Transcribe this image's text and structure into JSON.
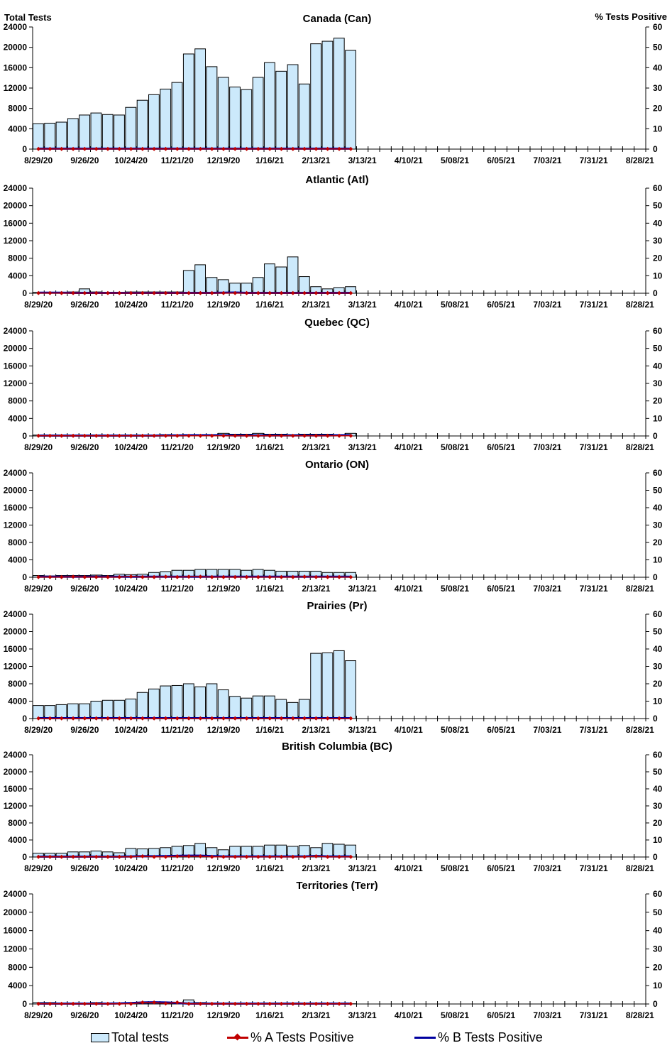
{
  "chart_data": {
    "type": "bar",
    "left_axis_label": "Total Tests",
    "right_axis_label": "% Tests Positive",
    "left_ylim": [
      0,
      24000
    ],
    "left_ticks": [
      "0",
      "4000",
      "8000",
      "12000",
      "16000",
      "20000",
      "24000"
    ],
    "right_ylim": [
      0,
      60
    ],
    "right_ticks": [
      "0",
      "10",
      "20",
      "30",
      "40",
      "50",
      "60"
    ],
    "x_tick_labels": [
      "8/29/20",
      "9/26/20",
      "10/24/20",
      "11/21/20",
      "12/19/20",
      "1/16/21",
      "2/13/21",
      "3/13/21",
      "4/10/21",
      "5/08/21",
      "6/05/21",
      "7/03/21",
      "7/31/21",
      "8/28/21"
    ],
    "weeks_total": 53,
    "legend": {
      "bars": "Total tests",
      "a": "% A Tests Positive",
      "b": "% B Tests Positive"
    },
    "colors": {
      "bar": "#cce9fb",
      "a": "#c00000",
      "b": "#0000a0"
    },
    "panels": [
      {
        "title": "Canada (Can)",
        "total": [
          5000,
          5100,
          5300,
          6000,
          6700,
          7100,
          6800,
          6700,
          8200,
          9600,
          10700,
          11800,
          13100,
          18700,
          19700,
          16200,
          14100,
          12200,
          11700,
          14100,
          17000,
          15300,
          16600,
          12800,
          20700,
          21200,
          21800,
          19400
        ],
        "pct_a": [
          0.1,
          0.1,
          0.1,
          0.1,
          0.1,
          0.1,
          0.1,
          0.1,
          0.1,
          0.1,
          0.1,
          0.1,
          0.1,
          0.1,
          0.1,
          0.1,
          0.1,
          0.1,
          0.1,
          0.1,
          0.1,
          0.1,
          0.1,
          0.1,
          0.1,
          0.1,
          0.1,
          0.1
        ],
        "pct_b": [
          0.2,
          0.2,
          0.2,
          0.2,
          0.2,
          0.2,
          0.2,
          0.2,
          0.2,
          0.2,
          0.2,
          0.2,
          0.2,
          0.2,
          0.2,
          0.2,
          0.2,
          0.2,
          0.2,
          0.2,
          0.2,
          0.2,
          0.2,
          0.2,
          0.2,
          0.2,
          0.2,
          0.2
        ]
      },
      {
        "title": "Atlantic (Atl)",
        "total": [
          200,
          200,
          200,
          300,
          1000,
          300,
          200,
          200,
          300,
          300,
          300,
          300,
          300,
          5200,
          6500,
          3600,
          3100,
          2300,
          2300,
          3600,
          6700,
          6000,
          8300,
          3800,
          1500,
          1000,
          1300,
          1500
        ],
        "pct_a": [
          0.1,
          0.1,
          0.1,
          0.1,
          0.1,
          0.1,
          0.1,
          0.1,
          0.1,
          0.1,
          0.1,
          0.1,
          0.1,
          0.1,
          0.1,
          0.1,
          0.1,
          0.1,
          0.1,
          0.1,
          0.1,
          0.1,
          0.1,
          0.1,
          0.1,
          0.1,
          0.1,
          0.1
        ],
        "pct_b": [
          0.3,
          0.3,
          0.3,
          0.2,
          0.2,
          0.2,
          0.2,
          0.2,
          0.2,
          0.2,
          0.2,
          0.2,
          0.2,
          0.2,
          0.2,
          0.2,
          0.3,
          0.4,
          0.2,
          0.2,
          0.2,
          0.2,
          0.2,
          0.2,
          0.2,
          0.2,
          0.2,
          0.2
        ]
      },
      {
        "title": "Quebec (QC)",
        "total": [
          200,
          200,
          200,
          200,
          200,
          200,
          200,
          200,
          200,
          200,
          200,
          300,
          200,
          300,
          300,
          300,
          600,
          400,
          400,
          600,
          400,
          400,
          300,
          400,
          400,
          400,
          200,
          600
        ],
        "pct_a": [
          0.1,
          0.1,
          0.1,
          0.1,
          0.1,
          0.1,
          0.1,
          0.1,
          0.1,
          0.1,
          0.1,
          0.1,
          0.1,
          0.1,
          0.1,
          0.1,
          0.1,
          0.1,
          0.1,
          0.1,
          0.1,
          0.1,
          0.1,
          0.1,
          0.1,
          0.1,
          0.1,
          0.1
        ],
        "pct_b": [
          0.2,
          0.2,
          0.2,
          0.2,
          0.2,
          0.2,
          0.2,
          0.2,
          0.2,
          0.2,
          0.2,
          0.3,
          0.3,
          0.4,
          0.4,
          0.4,
          0.4,
          0.3,
          0.3,
          0.3,
          0.3,
          0.3,
          0.3,
          0.3,
          0.3,
          0.3,
          0.4,
          0.4
        ]
      },
      {
        "title": "Ontario (ON)",
        "total": [
          400,
          300,
          400,
          400,
          400,
          500,
          400,
          700,
          600,
          700,
          1100,
          1300,
          1600,
          1600,
          1800,
          1800,
          1800,
          1800,
          1600,
          1800,
          1600,
          1400,
          1400,
          1400,
          1400,
          1100,
          1100,
          1100
        ],
        "pct_a": [
          0.1,
          0.1,
          0.1,
          0.3,
          0.1,
          0.1,
          0.1,
          0.1,
          0.4,
          0.1,
          0.1,
          0.3,
          0.1,
          0.3,
          0.3,
          0.1,
          0.1,
          0.1,
          0.1,
          0.1,
          0.1,
          0.1,
          0.1,
          0.3,
          0.1,
          0.1,
          0.1,
          0.1
        ],
        "pct_b": [
          0.3,
          0.3,
          0.3,
          0.3,
          0.3,
          0.3,
          0.3,
          0.3,
          0.3,
          0.3,
          0.3,
          0.3,
          0.3,
          0.3,
          0.3,
          0.3,
          0.3,
          0.3,
          0.3,
          0.3,
          0.3,
          0.3,
          0.3,
          0.3,
          0.3,
          0.3,
          0.3,
          0.3
        ]
      },
      {
        "title": "Prairies (Pr)",
        "total": [
          3000,
          3000,
          3200,
          3400,
          3400,
          4000,
          4200,
          4200,
          4500,
          6000,
          6800,
          7500,
          7600,
          8000,
          7300,
          8000,
          6600,
          5100,
          4700,
          5200,
          5200,
          4400,
          3700,
          4400,
          15000,
          15100,
          15600,
          13300
        ],
        "pct_a": [
          0.1,
          0.1,
          0.1,
          0.1,
          0.1,
          0.1,
          0.1,
          0.1,
          0.1,
          0.1,
          0.1,
          0.1,
          0.1,
          0.1,
          0.1,
          0.1,
          0.1,
          0.1,
          0.1,
          0.1,
          0.1,
          0.1,
          0.1,
          0.1,
          0.1,
          0.1,
          0.1,
          0.1
        ],
        "pct_b": [
          0.2,
          0.2,
          0.2,
          0.2,
          0.2,
          0.2,
          0.2,
          0.2,
          0.2,
          0.2,
          0.2,
          0.2,
          0.2,
          0.2,
          0.2,
          0.2,
          0.2,
          0.2,
          0.2,
          0.2,
          0.2,
          0.2,
          0.2,
          0.2,
          0.2,
          0.2,
          0.2,
          0.2
        ]
      },
      {
        "title": "British Columbia (BC)",
        "total": [
          900,
          900,
          900,
          1200,
          1200,
          1400,
          1200,
          1000,
          2000,
          1900,
          2000,
          2200,
          2500,
          2700,
          3200,
          2200,
          1700,
          2500,
          2500,
          2500,
          2800,
          2800,
          2500,
          2700,
          2200,
          3200,
          3000,
          2800
        ],
        "pct_a": [
          0.1,
          0.1,
          0.1,
          0.1,
          0.1,
          0.1,
          0.1,
          0.1,
          0.1,
          0.4,
          0.1,
          0.1,
          0.4,
          0.4,
          0.4,
          0.1,
          0.1,
          0.1,
          0.1,
          0.1,
          0.1,
          0.1,
          0.1,
          0.1,
          0.4,
          0.1,
          0.1,
          0.1
        ],
        "pct_b": [
          0.2,
          0.2,
          0.2,
          0.2,
          0.2,
          0.2,
          0.2,
          0.2,
          0.3,
          0.5,
          0.4,
          0.5,
          0.7,
          0.8,
          0.8,
          0.5,
          0.3,
          0.3,
          0.3,
          0.3,
          0.3,
          0.3,
          0.3,
          0.3,
          0.6,
          0.3,
          0.3,
          0.3
        ]
      },
      {
        "title": "Territories (Terr)",
        "total": [
          300,
          300,
          200,
          200,
          200,
          300,
          200,
          200,
          200,
          200,
          200,
          200,
          200,
          900,
          300,
          50,
          50,
          50,
          50,
          50,
          50,
          50,
          50,
          50,
          50,
          50,
          50,
          50
        ],
        "pct_a": [
          0.1,
          0.1,
          0.1,
          0.1,
          0.1,
          0.1,
          0.1,
          0.1,
          0.1,
          0.8,
          0.8,
          0.3,
          0.8,
          0.1,
          0.1,
          0.1,
          0.1,
          0.1,
          0.1,
          0.1,
          0.1,
          0.1,
          0.1,
          0.1,
          0.1,
          0.1,
          0.1,
          0.1
        ],
        "pct_b": [
          0.2,
          0.2,
          0.2,
          0.2,
          0.2,
          0.2,
          0.2,
          0.3,
          0.5,
          0.8,
          0.9,
          0.8,
          0.6,
          0.2,
          0.2,
          0.2,
          0.2,
          0.2,
          0.2,
          0.2,
          0.2,
          0.2,
          0.2,
          0.2,
          0.2,
          0.2,
          0.2,
          0.2
        ]
      }
    ]
  }
}
